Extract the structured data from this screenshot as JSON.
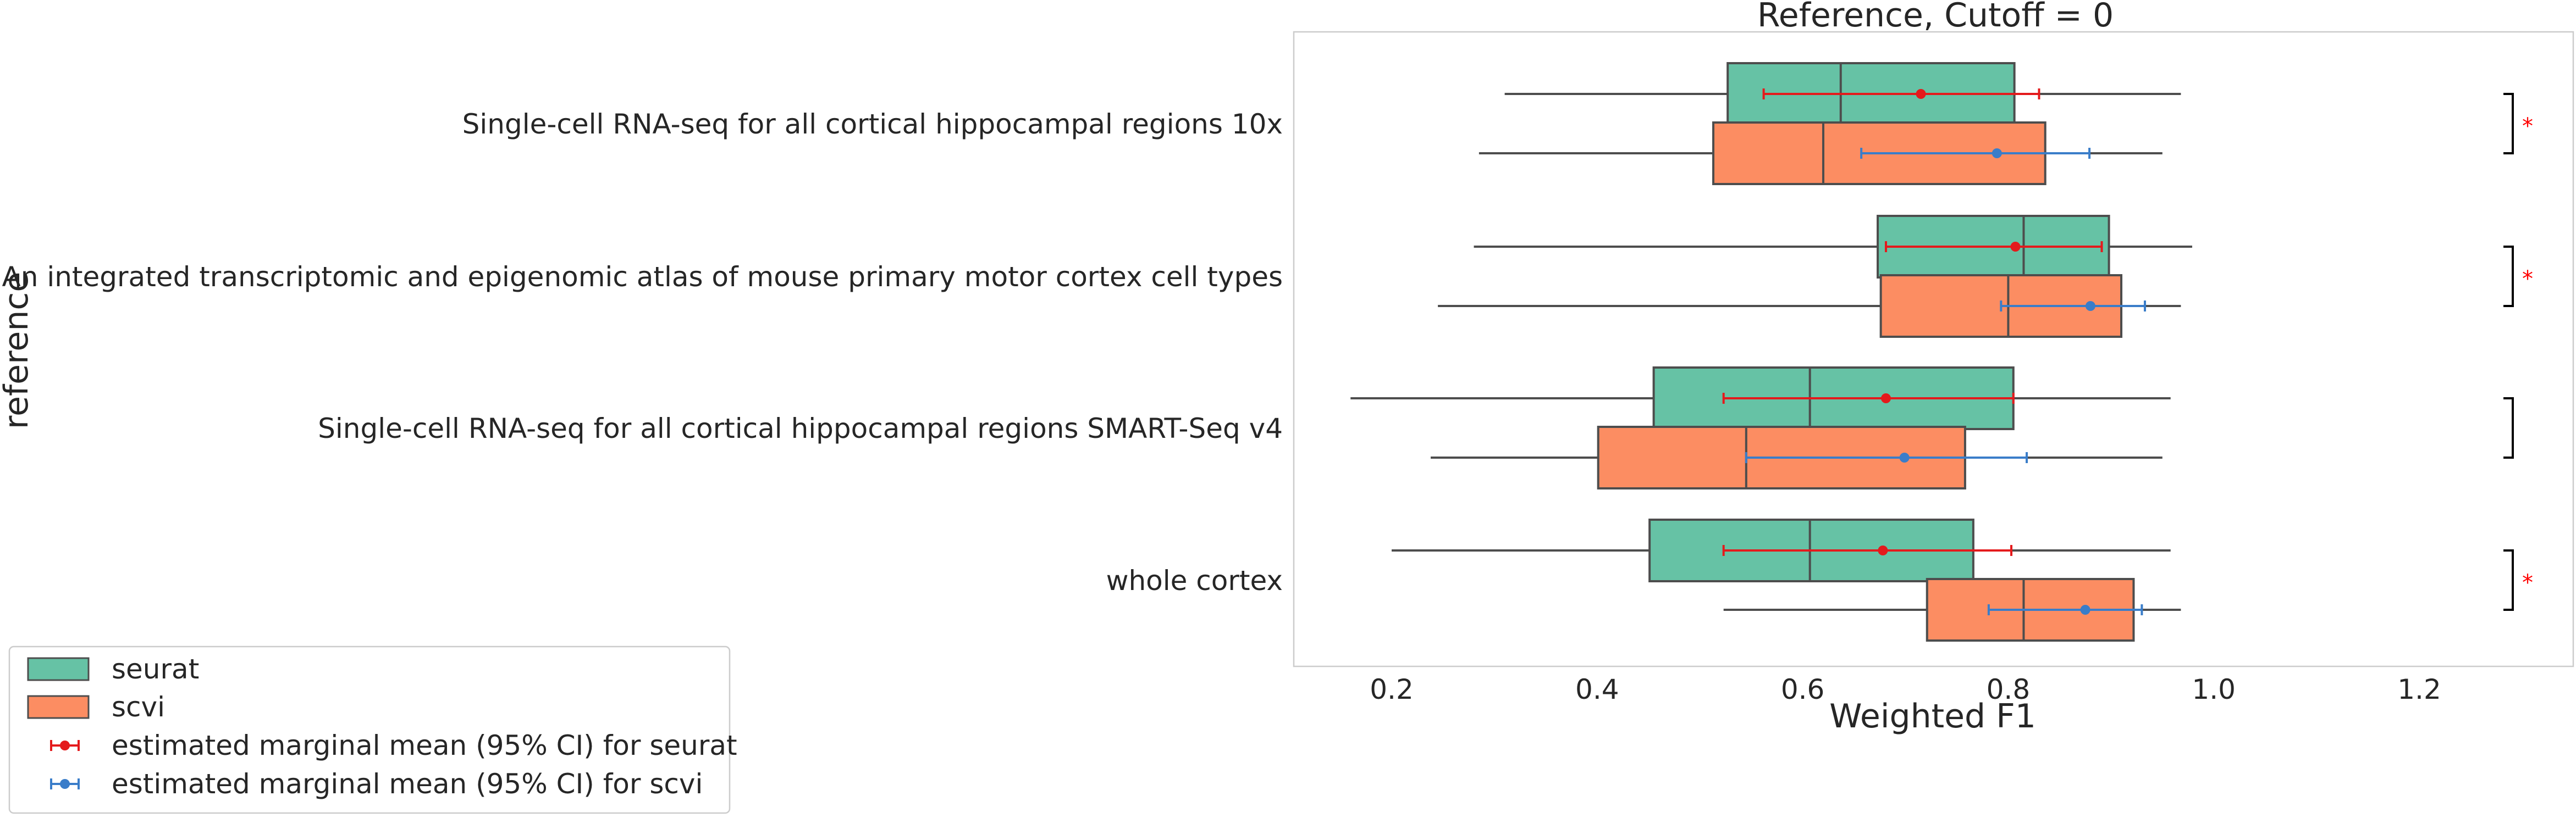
{
  "chart_data": {
    "type": "box",
    "title": "Reference, Cutoff = 0",
    "xlabel": "Weighted F1",
    "ylabel": "reference",
    "xlim": [
      0.1,
      1.33
    ],
    "xticks": [
      "0.2",
      "0.4",
      "0.6",
      "0.8",
      "1.0",
      "1.2"
    ],
    "grid": false,
    "legend_position": "bottom-left",
    "colors": {
      "seurat": "#66c2a5",
      "scvi": "#fc8d62",
      "seurat_mean": "#e41a1c",
      "scvi_mean": "#3a7dc9",
      "significance": "#ff0000"
    },
    "categories": [
      "Single-cell RNA-seq for all cortical  hippocampal regions 10x",
      "An integrated transcriptomic and epigenomic atlas of mouse primary motor cortex cell types",
      "Single-cell RNA-seq for all cortical  hippocampal regions SMART-Seq v4",
      "whole cortex"
    ],
    "series": [
      {
        "name": "seurat",
        "boxes": [
          {
            "whislo": 0.31,
            "q1": 0.527,
            "med": 0.637,
            "q3": 0.806,
            "whishi": 0.968
          },
          {
            "whislo": 0.28,
            "q1": 0.673,
            "med": 0.815,
            "q3": 0.898,
            "whishi": 0.979
          },
          {
            "whislo": 0.16,
            "q1": 0.455,
            "med": 0.607,
            "q3": 0.805,
            "whishi": 0.958
          },
          {
            "whislo": 0.2,
            "q1": 0.451,
            "med": 0.607,
            "q3": 0.766,
            "whishi": 0.958
          }
        ]
      },
      {
        "name": "scvi",
        "boxes": [
          {
            "whislo": 0.285,
            "q1": 0.513,
            "med": 0.62,
            "q3": 0.836,
            "whishi": 0.95
          },
          {
            "whislo": 0.245,
            "q1": 0.676,
            "med": 0.8,
            "q3": 0.91,
            "whishi": 0.968
          },
          {
            "whislo": 0.238,
            "q1": 0.401,
            "med": 0.545,
            "q3": 0.758,
            "whishi": 0.95
          },
          {
            "whislo": 0.523,
            "q1": 0.721,
            "med": 0.815,
            "q3": 0.922,
            "whishi": 0.968
          }
        ]
      }
    ],
    "marginal_means": [
      {
        "name": "estimated marginal mean (95% CI) for seurat",
        "points": [
          {
            "mean": 0.715,
            "lo": 0.562,
            "hi": 0.83
          },
          {
            "mean": 0.807,
            "lo": 0.681,
            "hi": 0.891
          },
          {
            "mean": 0.681,
            "lo": 0.523,
            "hi": 0.805
          },
          {
            "mean": 0.678,
            "lo": 0.523,
            "hi": 0.803
          }
        ]
      },
      {
        "name": "estimated marginal mean (95% CI) for scvi",
        "points": [
          {
            "mean": 0.789,
            "lo": 0.657,
            "hi": 0.879
          },
          {
            "mean": 0.88,
            "lo": 0.793,
            "hi": 0.933
          },
          {
            "mean": 0.699,
            "lo": 0.545,
            "hi": 0.818
          },
          {
            "mean": 0.875,
            "lo": 0.781,
            "hi": 0.93
          }
        ]
      }
    ],
    "significance": [
      "*",
      "*",
      "",
      "*"
    ],
    "legend": [
      "seurat",
      "scvi",
      "estimated marginal mean (95% CI) for seurat",
      "estimated marginal mean (95% CI) for scvi"
    ]
  }
}
